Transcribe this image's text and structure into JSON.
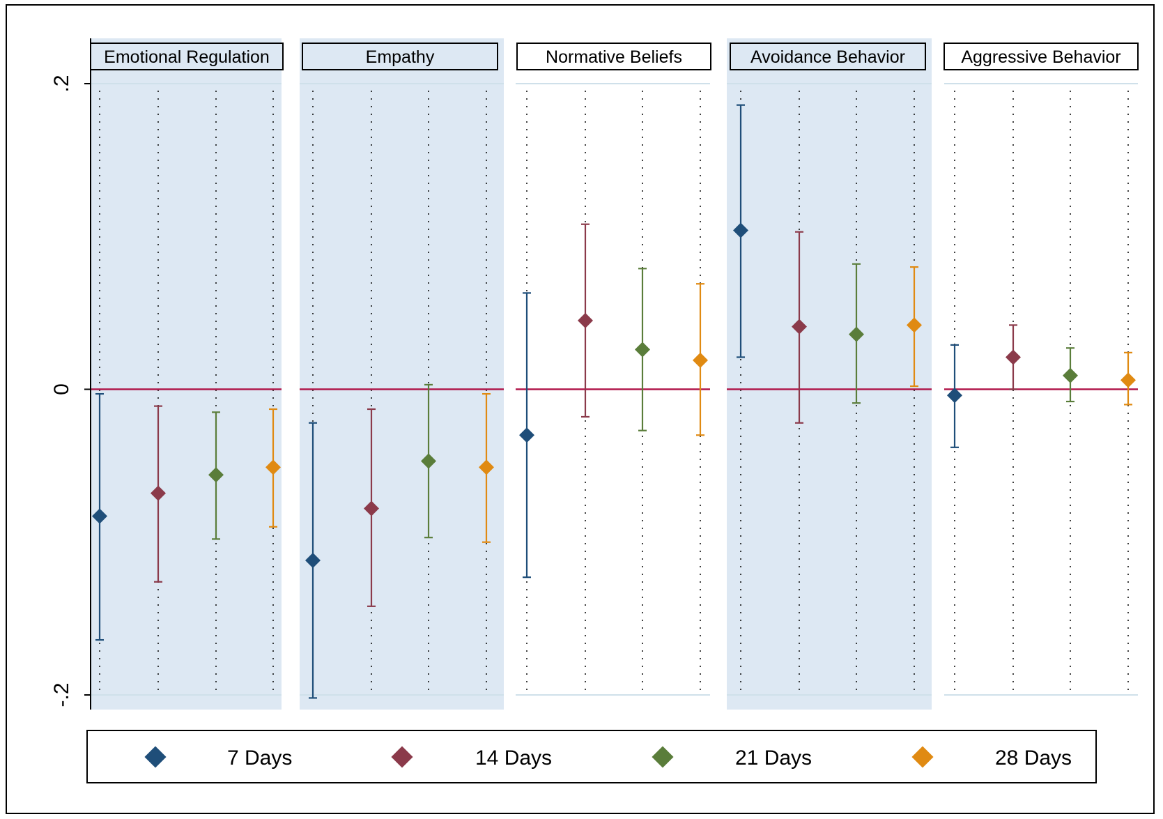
{
  "chart_data": {
    "type": "scatter",
    "subtype": "dot-with-error-bars, faceted",
    "ylim": [
      -0.2,
      0.2
    ],
    "yticks": [
      {
        "value": 0.2,
        "label": ".2"
      },
      {
        "value": 0,
        "label": "0"
      },
      {
        "value": -0.2,
        "label": "-.2"
      }
    ],
    "reference_line": {
      "y": 0,
      "color": "#b0174a"
    },
    "grid": true,
    "legend_position": "bottom",
    "series": [
      {
        "name": "7 Days",
        "color": "#1f4e79"
      },
      {
        "name": "14 Days",
        "color": "#8b3a4a"
      },
      {
        "name": "21 Days",
        "color": "#5a7d3a"
      },
      {
        "name": "28 Days",
        "color": "#e08a12"
      }
    ],
    "facets": [
      {
        "title": "Emotional Regulation",
        "shaded": true,
        "points": [
          {
            "series": "7 Days",
            "estimate": -0.083,
            "lower": -0.164,
            "upper": -0.003
          },
          {
            "series": "14 Days",
            "estimate": -0.068,
            "lower": -0.126,
            "upper": -0.011
          },
          {
            "series": "21 Days",
            "estimate": -0.056,
            "lower": -0.098,
            "upper": -0.015
          },
          {
            "series": "28 Days",
            "estimate": -0.051,
            "lower": -0.09,
            "upper": -0.013
          }
        ]
      },
      {
        "title": "Empathy",
        "shaded": true,
        "points": [
          {
            "series": "7 Days",
            "estimate": -0.112,
            "lower": -0.202,
            "upper": -0.022
          },
          {
            "series": "14 Days",
            "estimate": -0.078,
            "lower": -0.142,
            "upper": -0.013
          },
          {
            "series": "21 Days",
            "estimate": -0.047,
            "lower": -0.097,
            "upper": 0.003
          },
          {
            "series": "28 Days",
            "estimate": -0.051,
            "lower": -0.1,
            "upper": -0.003
          }
        ]
      },
      {
        "title": "Normative Beliefs",
        "shaded": false,
        "points": [
          {
            "series": "7 Days",
            "estimate": -0.03,
            "lower": -0.123,
            "upper": 0.063
          },
          {
            "series": "14 Days",
            "estimate": 0.045,
            "lower": -0.018,
            "upper": 0.108
          },
          {
            "series": "21 Days",
            "estimate": 0.026,
            "lower": -0.027,
            "upper": 0.079
          },
          {
            "series": "28 Days",
            "estimate": 0.019,
            "lower": -0.03,
            "upper": 0.069
          }
        ]
      },
      {
        "title": "Avoidance Behavior",
        "shaded": true,
        "points": [
          {
            "series": "7 Days",
            "estimate": 0.104,
            "lower": 0.021,
            "upper": 0.186
          },
          {
            "series": "14 Days",
            "estimate": 0.041,
            "lower": -0.022,
            "upper": 0.103
          },
          {
            "series": "21 Days",
            "estimate": 0.036,
            "lower": -0.009,
            "upper": 0.082
          },
          {
            "series": "28 Days",
            "estimate": 0.042,
            "lower": 0.002,
            "upper": 0.08
          }
        ]
      },
      {
        "title": "Aggressive Behavior",
        "shaded": false,
        "points": [
          {
            "series": "7 Days",
            "estimate": -0.004,
            "lower": -0.038,
            "upper": 0.029
          },
          {
            "series": "14 Days",
            "estimate": 0.021,
            "lower": 0.0,
            "upper": 0.042
          },
          {
            "series": "21 Days",
            "estimate": 0.009,
            "lower": -0.008,
            "upper": 0.027
          },
          {
            "series": "28 Days",
            "estimate": 0.006,
            "lower": -0.01,
            "upper": 0.024
          }
        ]
      }
    ]
  },
  "colors": {
    "shade": "#dde8f3",
    "gridline": "#cfe0ea",
    "refline": "#b0174a"
  }
}
